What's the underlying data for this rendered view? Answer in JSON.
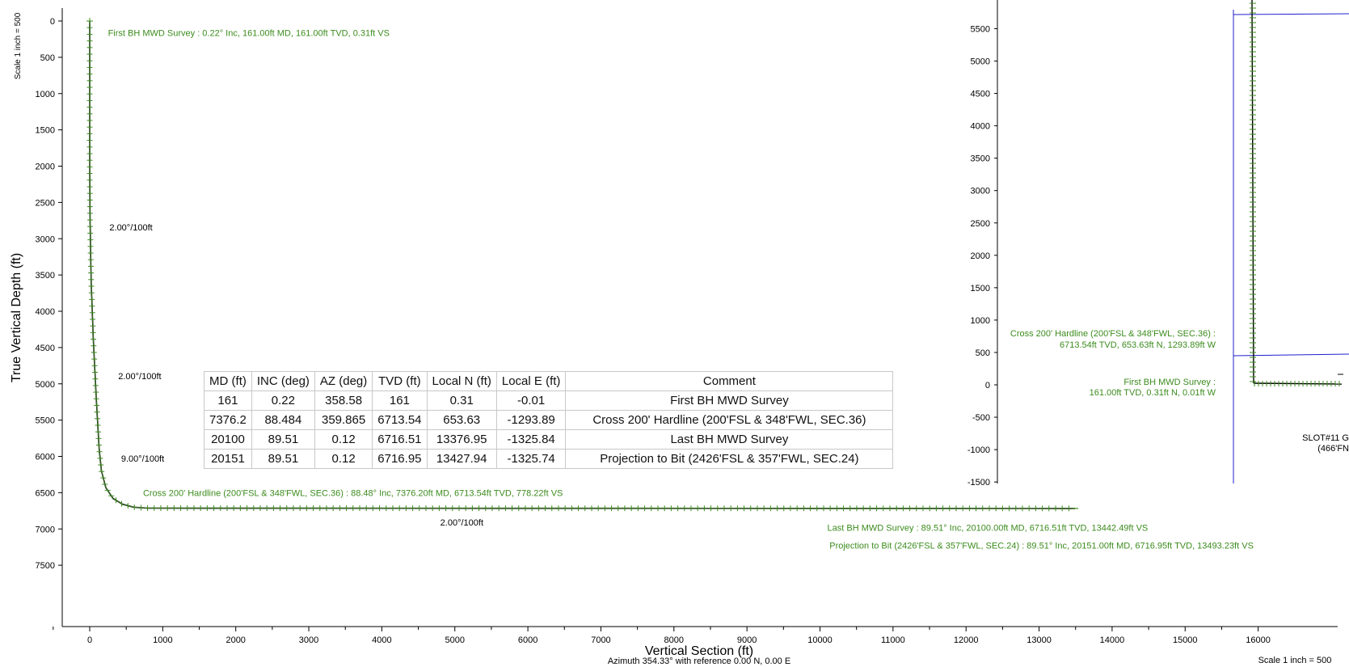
{
  "chart_data": [
    {
      "type": "line",
      "name": "vertical-section",
      "xlabel": "Vertical Section (ft)",
      "ylabel": "True Vertical Depth (ft)",
      "subtitle": "Azimuth 354.33° with reference 0.00 N, 0.00 E",
      "scale_left": "Scale 1 inch = 500",
      "xlim": [
        -400,
        16000
      ],
      "ylim": [
        7800,
        -150
      ],
      "x_ticks": [
        0,
        1000,
        2000,
        3000,
        4000,
        5000,
        6000,
        7000,
        8000,
        9000,
        10000,
        11000,
        12000,
        13000,
        14000,
        15000,
        16000
      ],
      "y_ticks": [
        0,
        500,
        1000,
        1500,
        2000,
        2500,
        3000,
        3500,
        4000,
        4500,
        5000,
        5500,
        6000,
        6500,
        7000,
        7500
      ],
      "path": {
        "x": [
          0,
          0,
          5,
          20,
          50,
          90,
          130,
          160,
          220,
          320,
          450,
          600,
          778,
          13493
        ],
        "y": [
          0,
          2000,
          2800,
          3600,
          4400,
          5200,
          5900,
          6200,
          6430,
          6580,
          6660,
          6700,
          6713.5,
          6717
        ]
      },
      "annotations": [
        {
          "text": "First BH MWD Survey : 0.22° Inc, 161.00ft MD, 161.00ft TVD, 0.31ft VS",
          "x": 250,
          "y": 161,
          "color": "green"
        },
        {
          "text": "2.00°/100ft",
          "x": 270,
          "y": 2840,
          "color": "black"
        },
        {
          "text": "2.00°/100ft",
          "x": 390,
          "y": 4890,
          "color": "black"
        },
        {
          "text": "9.00°/100ft",
          "x": 430,
          "y": 6030,
          "color": "black"
        },
        {
          "text": "Cross 200' Hardline (200'FSL & 348'FWL, SEC.36) : 88.48° Inc, 7376.20ft MD, 6713.54ft TVD, 778.22ft VS",
          "x": 730,
          "y": 6500,
          "color": "green"
        },
        {
          "text": "2.00°/100ft",
          "x": 4800,
          "y": 6910,
          "color": "black"
        },
        {
          "text": "Last BH MWD Survey : 89.51° Inc, 20100.00ft MD, 6716.51ft TVD, 13442.49ft VS",
          "x": 10100,
          "y": 6980,
          "color": "green"
        },
        {
          "text": "Projection to Bit (2426'FSL & 357'FWL, SEC.24) : 89.51° Inc, 20151.00ft MD, 6716.95ft TVD, 13493.23ft VS",
          "x": 10130,
          "y": 7225,
          "color": "green"
        }
      ]
    },
    {
      "type": "line",
      "name": "plan-view",
      "scale_right": "Scale 1 inch = 500",
      "ylim": [
        -1500,
        6000
      ],
      "y_ticks": [
        5500,
        5000,
        4500,
        4000,
        3500,
        3000,
        2500,
        2000,
        1500,
        1000,
        500,
        0,
        -500,
        -1000,
        -1500
      ],
      "path_note": "vertical well path then lateral to the east",
      "annotations": [
        {
          "text1": "Cross 200' Hardline (200'FSL & 348'FWL, SEC.36) :",
          "text2": "6713.54ft TVD, 653.63ft N, 1293.89ft W",
          "color": "green"
        },
        {
          "text1": "First BH MWD Survey :",
          "text2": "161.00ft TVD, 0.31ft N, 0.01ft W",
          "color": "green"
        },
        {
          "text1": "SLOT#11 G",
          "text2": "(466'FN",
          "color": "black"
        }
      ]
    }
  ],
  "table": {
    "headers": [
      "MD (ft)",
      "INC (deg)",
      "AZ (deg)",
      "TVD (ft)",
      "Local N (ft)",
      "Local E (ft)",
      "Comment"
    ],
    "rows": [
      [
        "161",
        "0.22",
        "358.58",
        "161",
        "0.31",
        "-0.01",
        "First BH MWD Survey"
      ],
      [
        "7376.2",
        "88.484",
        "359.865",
        "6713.54",
        "653.63",
        "-1293.89",
        "Cross 200' Hardline (200'FSL & 348'FWL, SEC.36)"
      ],
      [
        "20100",
        "89.51",
        "0.12",
        "6716.51",
        "13376.95",
        "-1325.84",
        "Last BH MWD Survey"
      ],
      [
        "20151",
        "89.51",
        "0.12",
        "6716.95",
        "13427.94",
        "-1325.74",
        "Projection to Bit (2426'FSL & 357'FWL, SEC.24)"
      ]
    ]
  },
  "colors": {
    "path": "#3c8c1e",
    "path_line": "#000000",
    "annotation_green": "#3c8c1e",
    "plan_lines": "#1f1fd0"
  }
}
